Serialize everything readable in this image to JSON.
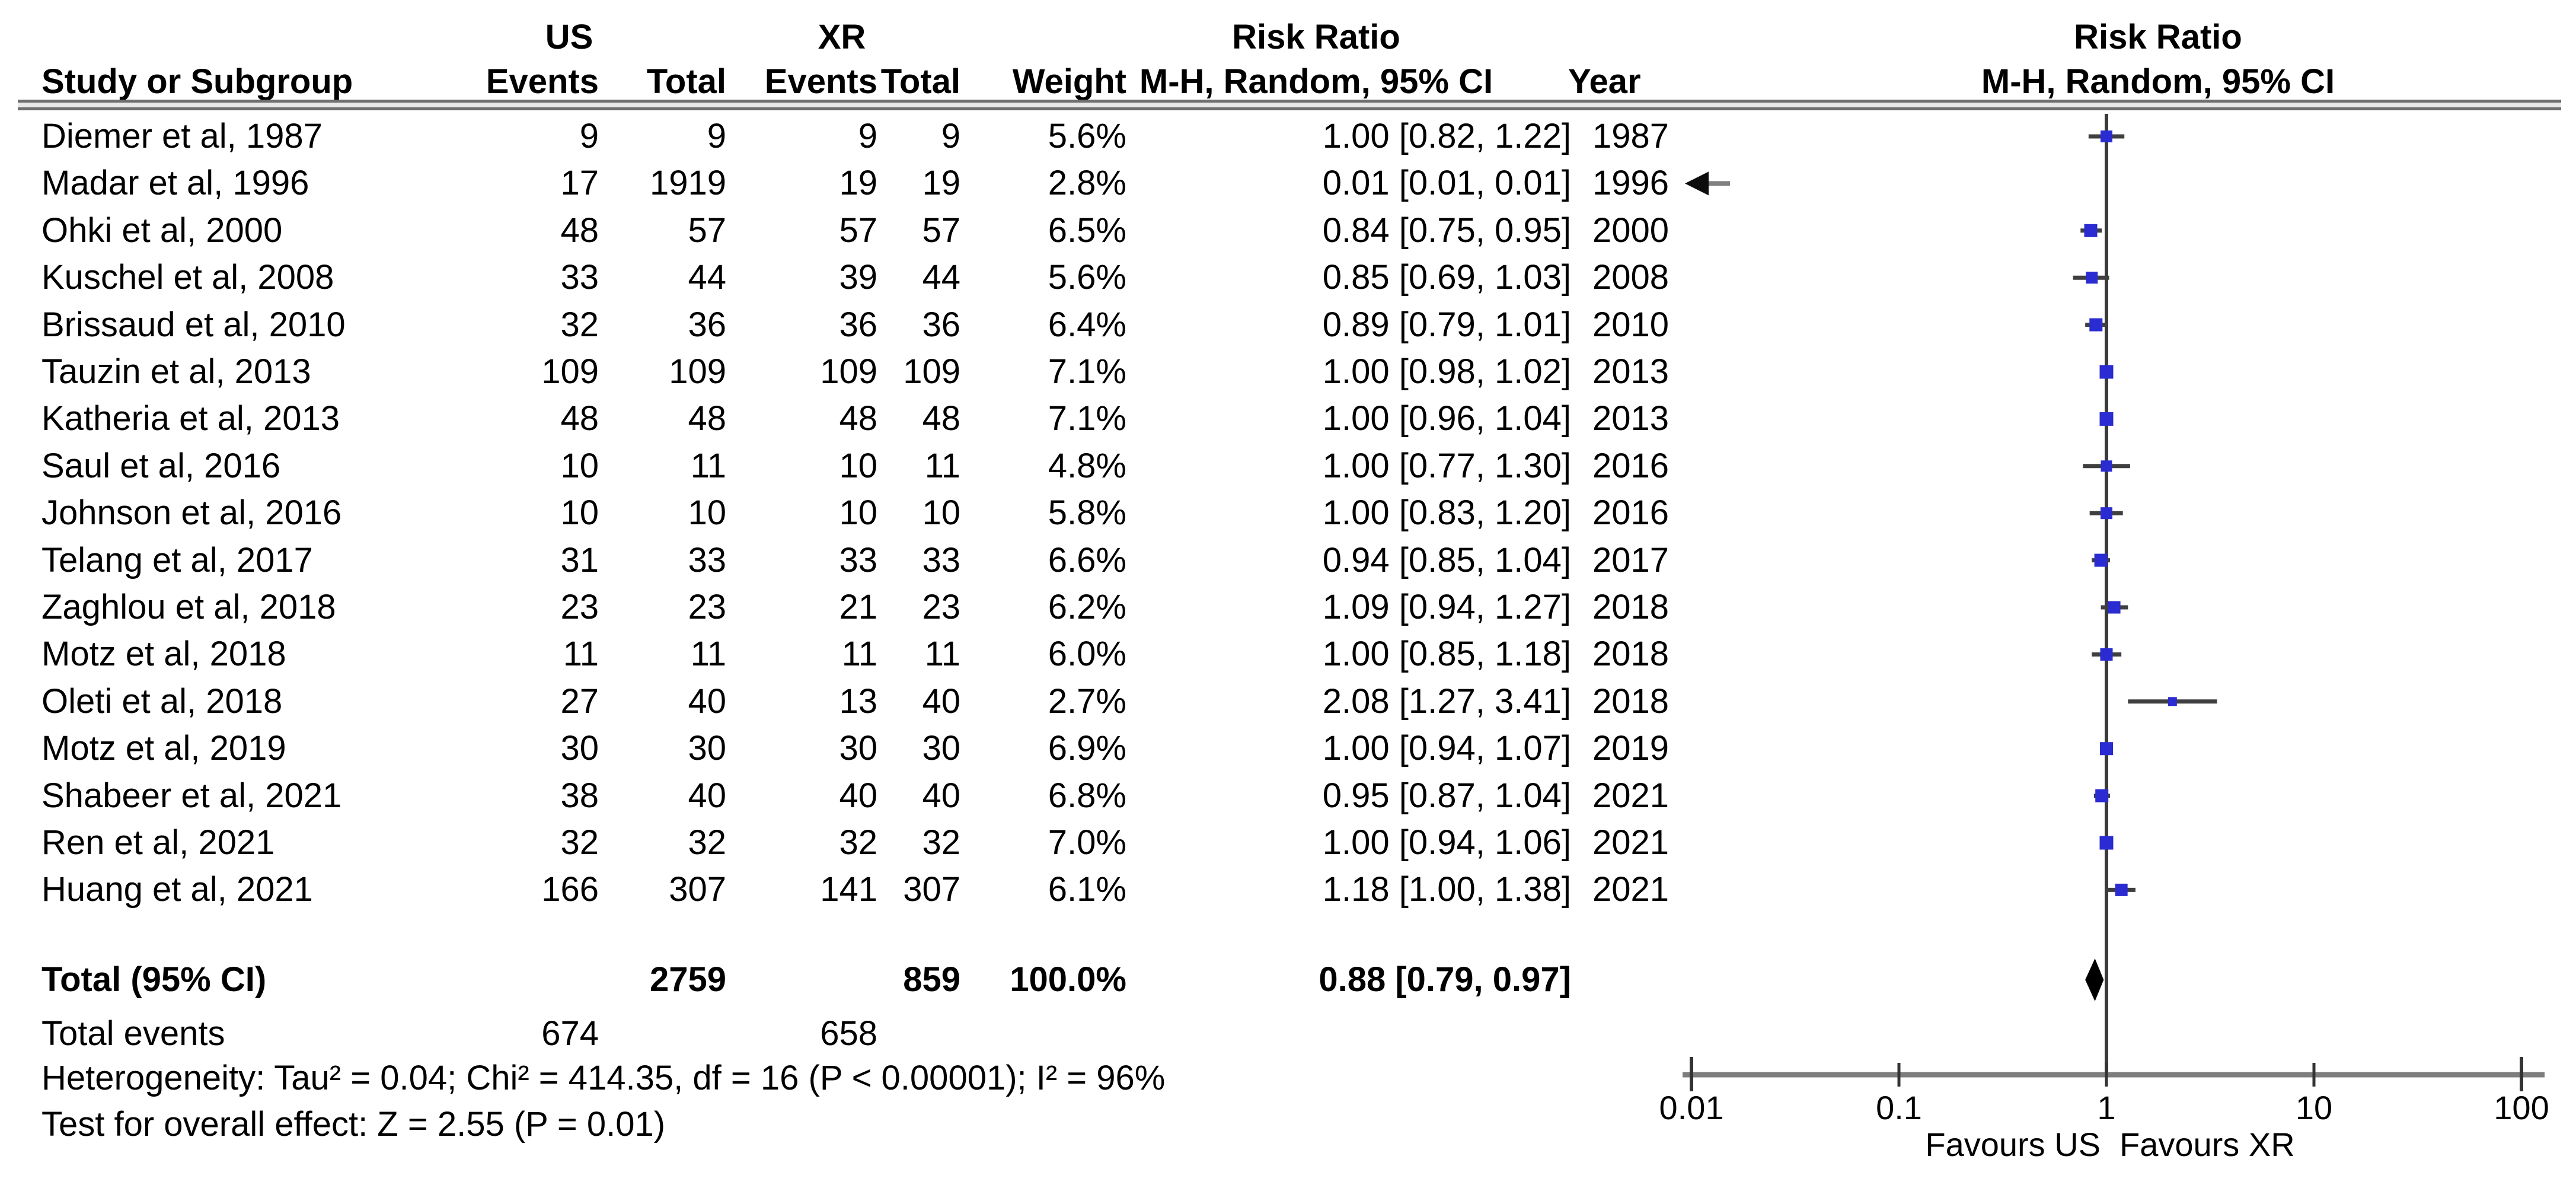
{
  "header": {
    "group1": "US",
    "group2": "XR",
    "risk_ratio_left": "Risk Ratio",
    "risk_ratio_right": "Risk Ratio",
    "method_left": "M-H, Random, 95% CI",
    "method_right": "M-H, Random, 95% CI",
    "study": "Study or Subgroup",
    "events1": "Events",
    "total1": "Total",
    "events2": "Events",
    "total2": "Total",
    "weight": "Weight",
    "year": "Year"
  },
  "chart_data": {
    "type": "scatter",
    "subtype": "forest_plot_meta_analysis",
    "effect_measure": "Risk Ratio",
    "method": "M-H, Random, 95% CI",
    "x_scale": "log10",
    "x_ticks": [
      "0.01",
      "0.1",
      "1",
      "10",
      "100"
    ],
    "xlim": [
      0.01,
      100
    ],
    "favours_left": "Favours US",
    "favours_right": "Favours XR",
    "studies": [
      {
        "study": "Diemer et al, 1987",
        "us_events": 9,
        "us_total": 9,
        "xr_events": 9,
        "xr_total": 9,
        "weight": "5.6%",
        "weight_value": 5.6,
        "rr": 1.0,
        "ci_low": 0.82,
        "ci_high": 1.22,
        "rr_label": "1.00 [0.82, 1.22]",
        "year": 1987
      },
      {
        "study": "Madar et al, 1996",
        "us_events": 17,
        "us_total": 1919,
        "xr_events": 19,
        "xr_total": 19,
        "weight": "2.8%",
        "weight_value": 2.8,
        "rr": 0.01,
        "ci_low": 0.01,
        "ci_high": 0.01,
        "rr_label": "0.01 [0.01, 0.01]",
        "year": 1996,
        "offscale_left": true
      },
      {
        "study": "Ohki et al, 2000",
        "us_events": 48,
        "us_total": 57,
        "xr_events": 57,
        "xr_total": 57,
        "weight": "6.5%",
        "weight_value": 6.5,
        "rr": 0.84,
        "ci_low": 0.75,
        "ci_high": 0.95,
        "rr_label": "0.84 [0.75, 0.95]",
        "year": 2000
      },
      {
        "study": "Kuschel et al, 2008",
        "us_events": 33,
        "us_total": 44,
        "xr_events": 39,
        "xr_total": 44,
        "weight": "5.6%",
        "weight_value": 5.6,
        "rr": 0.85,
        "ci_low": 0.69,
        "ci_high": 1.03,
        "rr_label": "0.85 [0.69, 1.03]",
        "year": 2008
      },
      {
        "study": "Brissaud et al, 2010",
        "us_events": 32,
        "us_total": 36,
        "xr_events": 36,
        "xr_total": 36,
        "weight": "6.4%",
        "weight_value": 6.4,
        "rr": 0.89,
        "ci_low": 0.79,
        "ci_high": 1.01,
        "rr_label": "0.89 [0.79, 1.01]",
        "year": 2010
      },
      {
        "study": "Tauzin et al, 2013",
        "us_events": 109,
        "us_total": 109,
        "xr_events": 109,
        "xr_total": 109,
        "weight": "7.1%",
        "weight_value": 7.1,
        "rr": 1.0,
        "ci_low": 0.98,
        "ci_high": 1.02,
        "rr_label": "1.00 [0.98, 1.02]",
        "year": 2013
      },
      {
        "study": "Katheria et al, 2013",
        "us_events": 48,
        "us_total": 48,
        "xr_events": 48,
        "xr_total": 48,
        "weight": "7.1%",
        "weight_value": 7.1,
        "rr": 1.0,
        "ci_low": 0.96,
        "ci_high": 1.04,
        "rr_label": "1.00 [0.96, 1.04]",
        "year": 2013
      },
      {
        "study": "Saul et al, 2016",
        "us_events": 10,
        "us_total": 11,
        "xr_events": 10,
        "xr_total": 11,
        "weight": "4.8%",
        "weight_value": 4.8,
        "rr": 1.0,
        "ci_low": 0.77,
        "ci_high": 1.3,
        "rr_label": "1.00 [0.77, 1.30]",
        "year": 2016
      },
      {
        "study": "Johnson et al, 2016",
        "us_events": 10,
        "us_total": 10,
        "xr_events": 10,
        "xr_total": 10,
        "weight": "5.8%",
        "weight_value": 5.8,
        "rr": 1.0,
        "ci_low": 0.83,
        "ci_high": 1.2,
        "rr_label": "1.00 [0.83, 1.20]",
        "year": 2016
      },
      {
        "study": "Telang et al, 2017",
        "us_events": 31,
        "us_total": 33,
        "xr_events": 33,
        "xr_total": 33,
        "weight": "6.6%",
        "weight_value": 6.6,
        "rr": 0.94,
        "ci_low": 0.85,
        "ci_high": 1.04,
        "rr_label": "0.94 [0.85, 1.04]",
        "year": 2017
      },
      {
        "study": "Zaghlou et al, 2018",
        "us_events": 23,
        "us_total": 23,
        "xr_events": 21,
        "xr_total": 23,
        "weight": "6.2%",
        "weight_value": 6.2,
        "rr": 1.09,
        "ci_low": 0.94,
        "ci_high": 1.27,
        "rr_label": "1.09 [0.94, 1.27]",
        "year": 2018
      },
      {
        "study": "Motz et al, 2018",
        "us_events": 11,
        "us_total": 11,
        "xr_events": 11,
        "xr_total": 11,
        "weight": "6.0%",
        "weight_value": 6.0,
        "rr": 1.0,
        "ci_low": 0.85,
        "ci_high": 1.18,
        "rr_label": "1.00 [0.85, 1.18]",
        "year": 2018
      },
      {
        "study": "Oleti et al, 2018",
        "us_events": 27,
        "us_total": 40,
        "xr_events": 13,
        "xr_total": 40,
        "weight": "2.7%",
        "weight_value": 2.7,
        "rr": 2.08,
        "ci_low": 1.27,
        "ci_high": 3.41,
        "rr_label": "2.08 [1.27, 3.41]",
        "year": 2018
      },
      {
        "study": "Motz et al, 2019",
        "us_events": 30,
        "us_total": 30,
        "xr_events": 30,
        "xr_total": 30,
        "weight": "6.9%",
        "weight_value": 6.9,
        "rr": 1.0,
        "ci_low": 0.94,
        "ci_high": 1.07,
        "rr_label": "1.00 [0.94, 1.07]",
        "year": 2019
      },
      {
        "study": "Shabeer et al, 2021",
        "us_events": 38,
        "us_total": 40,
        "xr_events": 40,
        "xr_total": 40,
        "weight": "6.8%",
        "weight_value": 6.8,
        "rr": 0.95,
        "ci_low": 0.87,
        "ci_high": 1.04,
        "rr_label": "0.95 [0.87, 1.04]",
        "year": 2021
      },
      {
        "study": "Ren et al, 2021",
        "us_events": 32,
        "us_total": 32,
        "xr_events": 32,
        "xr_total": 32,
        "weight": "7.0%",
        "weight_value": 7.0,
        "rr": 1.0,
        "ci_low": 0.94,
        "ci_high": 1.06,
        "rr_label": "1.00 [0.94, 1.06]",
        "year": 2021
      },
      {
        "study": "Huang et al, 2021",
        "us_events": 166,
        "us_total": 307,
        "xr_events": 141,
        "xr_total": 307,
        "weight": "6.1%",
        "weight_value": 6.1,
        "rr": 1.18,
        "ci_low": 1.0,
        "ci_high": 1.38,
        "rr_label": "1.18 [1.00, 1.38]",
        "year": 2021
      }
    ],
    "total": {
      "label": "Total (95% CI)",
      "us_total": 2759,
      "xr_total": 859,
      "weight": "100.0%",
      "rr": 0.88,
      "ci_low": 0.79,
      "ci_high": 0.97,
      "rr_label": "0.88 [0.79, 0.97]"
    },
    "total_events": {
      "label": "Total events",
      "us_events": 674,
      "xr_events": 658
    },
    "heterogeneity": "Heterogeneity: Tau² = 0.04; Chi² = 414.35, df = 16 (P < 0.00001); I² = 96%",
    "test_overall": "Test for overall effect: Z = 2.55 (P = 0.01)",
    "colors": {
      "marker": "#2b2bd2",
      "diamond": "#000000",
      "ci_line": "#3f3f3f",
      "vertical_line": "#3a3a3a",
      "axis": "#7d7d7d",
      "text": "#000000"
    }
  }
}
